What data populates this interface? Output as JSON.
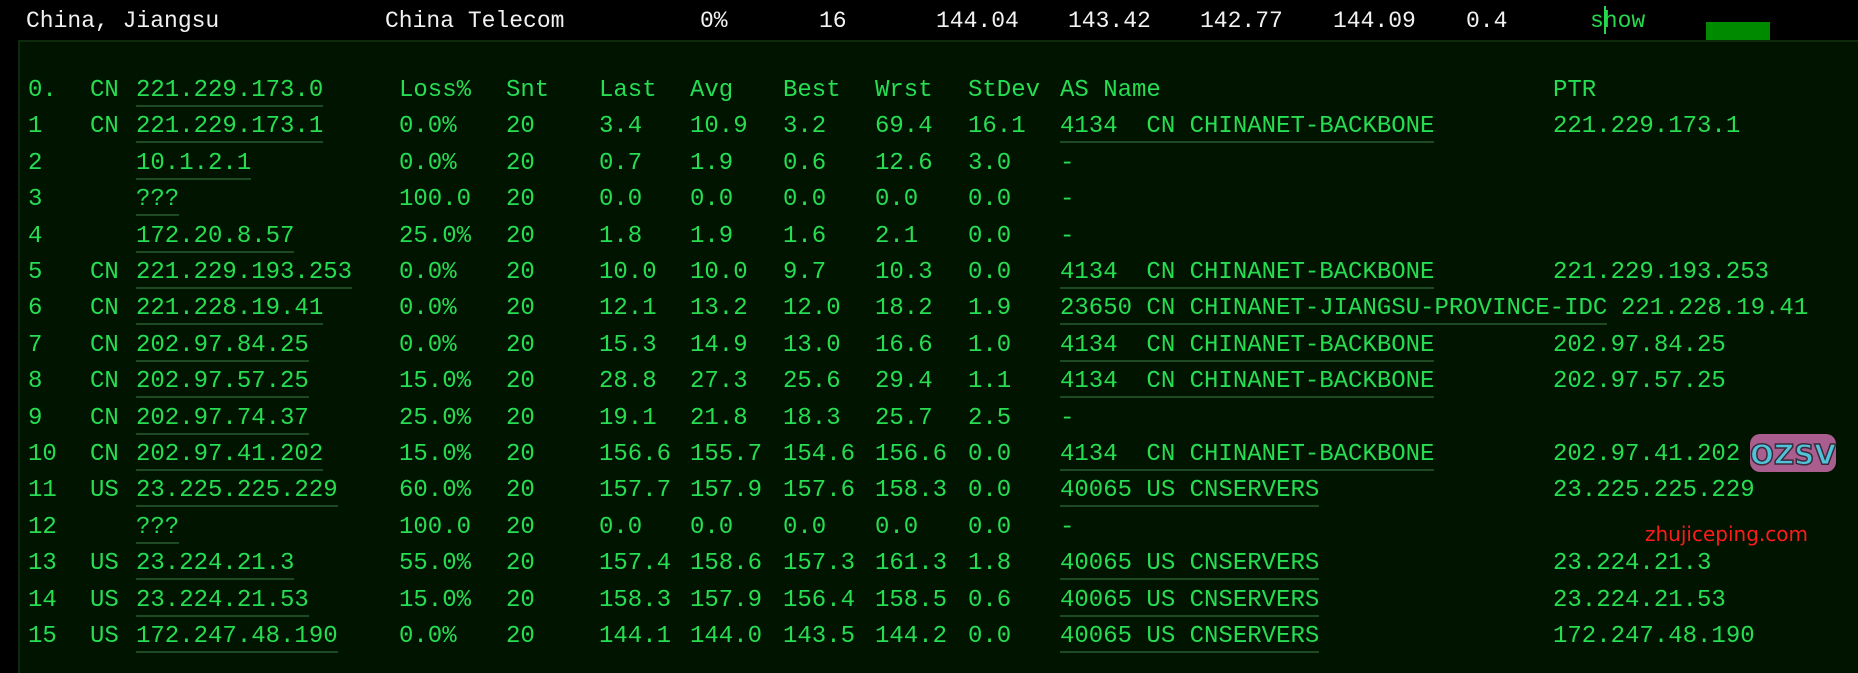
{
  "summary": {
    "location": "China, Jiangsu",
    "isp": "China Telecom",
    "loss": "0%",
    "sent": "16",
    "last": "144.04",
    "avg": "143.42",
    "best": "142.77",
    "worst": "144.09",
    "stdev": "0.4",
    "action": "show"
  },
  "colors": {
    "text": "#27dd52",
    "panel_bg": "#001400",
    "header_text": "#f2f2f2",
    "watermark": "#ff1a1a"
  },
  "table": {
    "header": {
      "hop": "0.",
      "cc": "CN",
      "ip": "221.229.173.0",
      "loss": "Loss%",
      "snt": "Snt",
      "last": "Last",
      "avg": "Avg",
      "best": "Best",
      "wrst": "Wrst",
      "stdev": "StDev",
      "as": "AS Name",
      "ptr": "PTR"
    },
    "rows": [
      {
        "hop": "1",
        "cc": "CN",
        "ip": "221.229.173.1",
        "loss": "0.0%",
        "snt": "20",
        "last": "3.4",
        "avg": "10.9",
        "best": "3.2",
        "wrst": "69.4",
        "stdev": "16.1",
        "as": "4134  CN CHINANET-BACKBONE",
        "ptr": "221.229.173.1"
      },
      {
        "hop": "2",
        "cc": "",
        "ip": "10.1.2.1",
        "loss": "0.0%",
        "snt": "20",
        "last": "0.7",
        "avg": "1.9",
        "best": "0.6",
        "wrst": "12.6",
        "stdev": "3.0",
        "as": "-",
        "ptr": ""
      },
      {
        "hop": "3",
        "cc": "",
        "ip": "???",
        "loss": "100.0",
        "snt": "20",
        "last": "0.0",
        "avg": "0.0",
        "best": "0.0",
        "wrst": "0.0",
        "stdev": "0.0",
        "as": "-",
        "ptr": ""
      },
      {
        "hop": "4",
        "cc": "",
        "ip": "172.20.8.57",
        "loss": "25.0%",
        "snt": "20",
        "last": "1.8",
        "avg": "1.9",
        "best": "1.6",
        "wrst": "2.1",
        "stdev": "0.0",
        "as": "-",
        "ptr": ""
      },
      {
        "hop": "5",
        "cc": "CN",
        "ip": "221.229.193.253",
        "loss": "0.0%",
        "snt": "20",
        "last": "10.0",
        "avg": "10.0",
        "best": "9.7",
        "wrst": "10.3",
        "stdev": "0.0",
        "as": "4134  CN CHINANET-BACKBONE",
        "ptr": "221.229.193.253"
      },
      {
        "hop": "6",
        "cc": "CN",
        "ip": "221.228.19.41",
        "loss": "0.0%",
        "snt": "20",
        "last": "12.1",
        "avg": "13.2",
        "best": "12.0",
        "wrst": "18.2",
        "stdev": "1.9",
        "as": "23650 CN CHINANET-JIANGSU-PROVINCE-IDC",
        "ptr": "221.228.19.41"
      },
      {
        "hop": "7",
        "cc": "CN",
        "ip": "202.97.84.25",
        "loss": "0.0%",
        "snt": "20",
        "last": "15.3",
        "avg": "14.9",
        "best": "13.0",
        "wrst": "16.6",
        "stdev": "1.0",
        "as": "4134  CN CHINANET-BACKBONE",
        "ptr": "202.97.84.25"
      },
      {
        "hop": "8",
        "cc": "CN",
        "ip": "202.97.57.25",
        "loss": "15.0%",
        "snt": "20",
        "last": "28.8",
        "avg": "27.3",
        "best": "25.6",
        "wrst": "29.4",
        "stdev": "1.1",
        "as": "4134  CN CHINANET-BACKBONE",
        "ptr": "202.97.57.25"
      },
      {
        "hop": "9",
        "cc": "CN",
        "ip": "202.97.74.37",
        "loss": "25.0%",
        "snt": "20",
        "last": "19.1",
        "avg": "21.8",
        "best": "18.3",
        "wrst": "25.7",
        "stdev": "2.5",
        "as": "-",
        "ptr": ""
      },
      {
        "hop": "10",
        "cc": "CN",
        "ip": "202.97.41.202",
        "loss": "15.0%",
        "snt": "20",
        "last": "156.6",
        "avg": "155.7",
        "best": "154.6",
        "wrst": "156.6",
        "stdev": "0.0",
        "as": "4134  CN CHINANET-BACKBONE",
        "ptr": "202.97.41.202"
      },
      {
        "hop": "11",
        "cc": "US",
        "ip": "23.225.225.229",
        "loss": "60.0%",
        "snt": "20",
        "last": "157.7",
        "avg": "157.9",
        "best": "157.6",
        "wrst": "158.3",
        "stdev": "0.0",
        "as": "40065 US CNSERVERS",
        "ptr": "23.225.225.229"
      },
      {
        "hop": "12",
        "cc": "",
        "ip": "???",
        "loss": "100.0",
        "snt": "20",
        "last": "0.0",
        "avg": "0.0",
        "best": "0.0",
        "wrst": "0.0",
        "stdev": "0.0",
        "as": "-",
        "ptr": ""
      },
      {
        "hop": "13",
        "cc": "US",
        "ip": "23.224.21.3",
        "loss": "55.0%",
        "snt": "20",
        "last": "157.4",
        "avg": "158.6",
        "best": "157.3",
        "wrst": "161.3",
        "stdev": "1.8",
        "as": "40065 US CNSERVERS",
        "ptr": "23.224.21.3"
      },
      {
        "hop": "14",
        "cc": "US",
        "ip": "23.224.21.53",
        "loss": "15.0%",
        "snt": "20",
        "last": "158.3",
        "avg": "157.9",
        "best": "156.4",
        "wrst": "158.5",
        "stdev": "0.6",
        "as": "40065 US CNSERVERS",
        "ptr": "23.224.21.53"
      },
      {
        "hop": "15",
        "cc": "US",
        "ip": "172.247.48.190",
        "loss": "0.0%",
        "snt": "20",
        "last": "144.1",
        "avg": "144.0",
        "best": "143.5",
        "wrst": "144.2",
        "stdev": "0.0",
        "as": "40065 US CNSERVERS",
        "ptr": "172.247.48.190"
      }
    ]
  },
  "watermarks": {
    "logo": "OZSV",
    "site": "zhujiceping.com"
  }
}
